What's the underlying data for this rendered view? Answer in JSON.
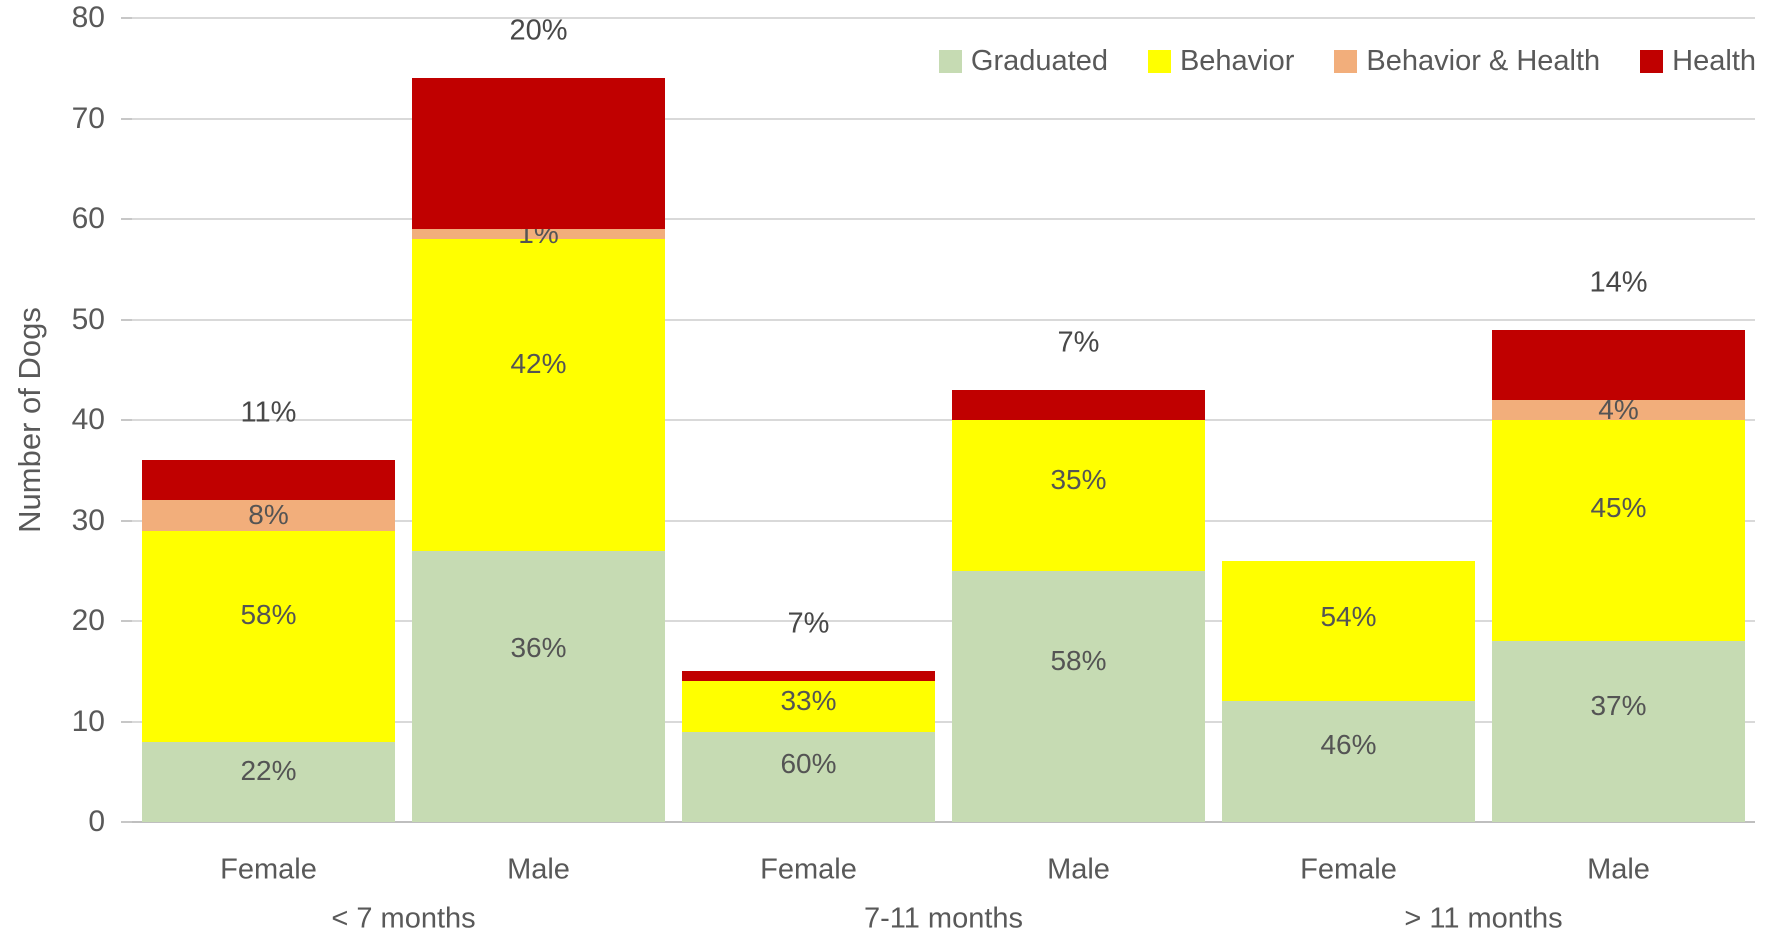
{
  "chart_data": {
    "type": "bar",
    "stacked": true,
    "title": "",
    "ylabel": "Number of Dogs",
    "xlabel": "",
    "ylim": [
      0,
      80
    ],
    "yticks": [
      0,
      10,
      20,
      30,
      40,
      50,
      60,
      70,
      80
    ],
    "grid": true,
    "legend_position": "top-right",
    "group_labels": [
      "< 7 months",
      "7-11 months",
      "> 11 months"
    ],
    "categories": [
      "Female",
      "Male",
      "Female",
      "Male",
      "Female",
      "Male"
    ],
    "totals": [
      36,
      74,
      15,
      43,
      26,
      49
    ],
    "series": [
      {
        "name": "Graduated",
        "color": "#C6DBB3",
        "values": [
          8,
          27,
          9,
          25,
          12,
          18
        ],
        "pct_labels": [
          "22%",
          "36%",
          "60%",
          "58%",
          "46%",
          "37%"
        ]
      },
      {
        "name": "Behavior",
        "color": "#FFFF00",
        "values": [
          21,
          31,
          5,
          15,
          14,
          22
        ],
        "pct_labels": [
          "58%",
          "42%",
          "33%",
          "35%",
          "54%",
          "45%"
        ]
      },
      {
        "name": "Behavior & Health",
        "color": "#F2AE7B",
        "values": [
          3,
          1,
          0,
          0,
          0,
          2
        ],
        "pct_labels": [
          "8%",
          "1%",
          "",
          "",
          "",
          "4%"
        ]
      },
      {
        "name": "Health",
        "color": "#C00000",
        "values": [
          4,
          15,
          1,
          3,
          0,
          7
        ],
        "pct_labels": [
          "11%",
          "20%",
          "7%",
          "7%",
          "",
          "14%"
        ],
        "label_position": "above"
      }
    ]
  },
  "colors": {
    "gridline": "#D9D9D9",
    "axis_line": "#BFBFBF",
    "text": "#595959"
  }
}
